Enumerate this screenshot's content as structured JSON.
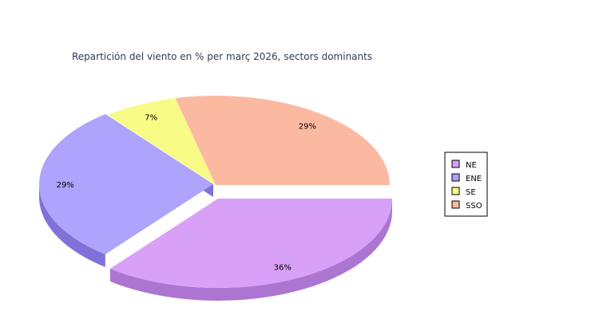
{
  "chart_data": {
    "type": "pie",
    "title": "Repartición del viento en % per març 2026, sectors dominants",
    "categories": [
      "NE",
      "ENE",
      "SE",
      "SSO"
    ],
    "values": [
      36,
      29,
      7,
      29
    ],
    "labels": [
      "36%",
      "29%",
      "7%",
      "29%"
    ],
    "colors": [
      "#d9a0f8",
      "#aea3fd",
      "#f8fb86",
      "#fcb9a1"
    ],
    "side_colors": [
      "#ad75d2",
      "#7f71d7",
      "#c9cc5a",
      "#d08a74"
    ],
    "exploded": [
      "NE",
      "ENE"
    ],
    "legend_position": "right"
  }
}
